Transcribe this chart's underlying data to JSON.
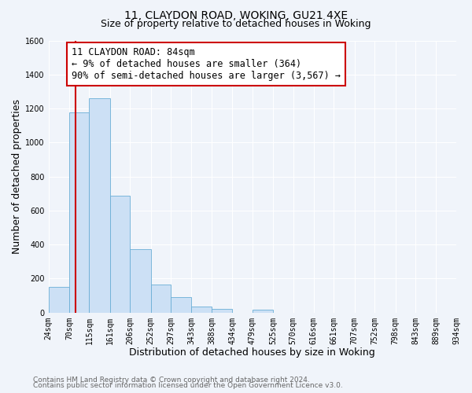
{
  "title": "11, CLAYDON ROAD, WOKING, GU21 4XE",
  "subtitle": "Size of property relative to detached houses in Woking",
  "xlabel": "Distribution of detached houses by size in Woking",
  "ylabel": "Number of detached properties",
  "bar_edges": [
    24,
    70,
    115,
    161,
    206,
    252,
    297,
    343,
    388,
    434,
    479,
    525,
    570,
    616,
    661,
    707,
    752,
    798,
    843,
    889,
    934
  ],
  "bar_heights": [
    150,
    1175,
    1260,
    685,
    375,
    165,
    90,
    35,
    20,
    0,
    18,
    0,
    0,
    0,
    0,
    0,
    0,
    0,
    0,
    0
  ],
  "bar_color": "#cce0f5",
  "bar_edge_color": "#6aaed6",
  "vline_x": 84,
  "vline_color": "#cc0000",
  "annotation_title": "11 CLAYDON ROAD: 84sqm",
  "annotation_line1": "← 9% of detached houses are smaller (364)",
  "annotation_line2": "90% of semi-detached houses are larger (3,567) →",
  "annotation_box_color": "#ffffff",
  "annotation_box_edge_color": "#cc0000",
  "ylim": [
    0,
    1600
  ],
  "yticks": [
    0,
    200,
    400,
    600,
    800,
    1000,
    1200,
    1400,
    1600
  ],
  "tick_labels": [
    "24sqm",
    "70sqm",
    "115sqm",
    "161sqm",
    "206sqm",
    "252sqm",
    "297sqm",
    "343sqm",
    "388sqm",
    "434sqm",
    "479sqm",
    "525sqm",
    "570sqm",
    "616sqm",
    "661sqm",
    "707sqm",
    "752sqm",
    "798sqm",
    "843sqm",
    "889sqm",
    "934sqm"
  ],
  "footer1": "Contains HM Land Registry data © Crown copyright and database right 2024.",
  "footer2": "Contains public sector information licensed under the Open Government Licence v3.0.",
  "bg_color": "#f0f4fa",
  "plot_bg_color": "#f0f4fa",
  "grid_color": "#ffffff",
  "title_fontsize": 10,
  "subtitle_fontsize": 9,
  "axis_label_fontsize": 9,
  "tick_fontsize": 7,
  "footer_fontsize": 6.5,
  "ann_fontsize": 8.5
}
